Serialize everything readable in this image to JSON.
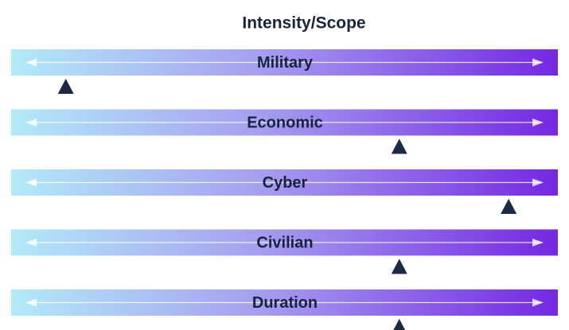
{
  "title": "Intensity/Scope",
  "xlim": [
    0,
    100
  ],
  "rows": [
    {
      "label": "Military",
      "position": 10
    },
    {
      "label": "Economic",
      "position": 71
    },
    {
      "label": "Cyber",
      "position": 91
    },
    {
      "label": "Civilian",
      "position": 71
    },
    {
      "label": "Duration",
      "position": 71
    }
  ]
}
